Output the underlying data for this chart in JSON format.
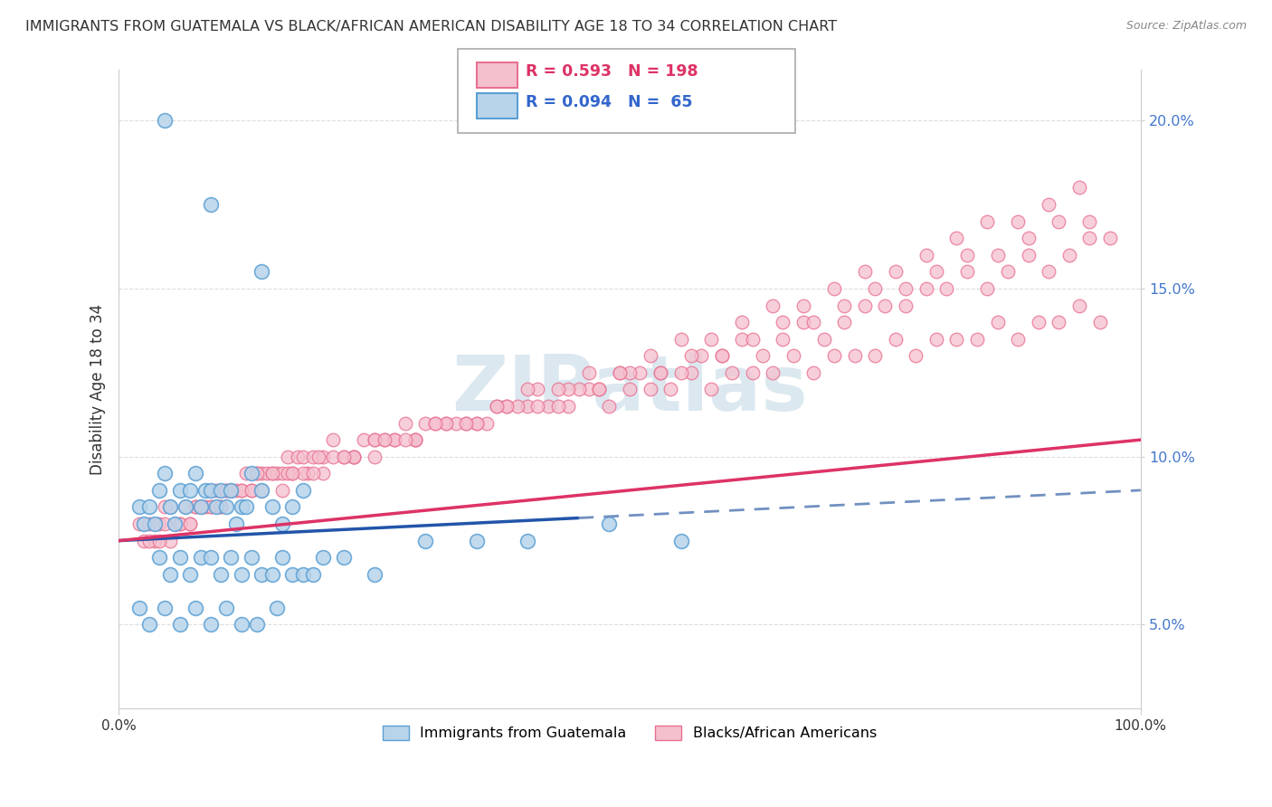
{
  "title": "IMMIGRANTS FROM GUATEMALA VS BLACK/AFRICAN AMERICAN DISABILITY AGE 18 TO 34 CORRELATION CHART",
  "source": "Source: ZipAtlas.com",
  "ylabel": "Disability Age 18 to 34",
  "xlim": [
    0,
    100
  ],
  "ylim": [
    2.5,
    21.5
  ],
  "yticks": [
    5.0,
    10.0,
    15.0,
    20.0
  ],
  "xtick_labels": [
    "0.0%",
    "100.0%"
  ],
  "ytick_labels": [
    "5.0%",
    "10.0%",
    "15.0%",
    "20.0%"
  ],
  "blue_color": "#b8d4ea",
  "blue_edge": "#5a9fd4",
  "pink_color": "#f5c0ce",
  "pink_edge": "#e87090",
  "blue_line_color": "#2255aa",
  "blue_line_dashed_color": "#7090c0",
  "pink_line_color": "#dd3366",
  "watermark_text": "ZIPatlas",
  "watermark_color": "#dce8f0",
  "ytick_color": "#4477cc",
  "xtick_color": "#333333",
  "ylabel_color": "#333333",
  "grid_color": "#dddddd",
  "spine_color": "#cccccc",
  "title_color": "#333333",
  "source_color": "#888888",
  "legend_box_color": "#aaaaaa",
  "legend_text_blue": "#3366cc",
  "legend_text_pink": "#dd3366",
  "blue_scatter_x": [
    4.5,
    9.0,
    14.0,
    2.0,
    2.5,
    3.0,
    3.5,
    4.0,
    4.5,
    5.0,
    5.5,
    6.0,
    6.5,
    7.0,
    7.5,
    8.0,
    8.5,
    9.0,
    9.5,
    10.0,
    10.5,
    11.0,
    11.5,
    12.0,
    12.5,
    13.0,
    14.0,
    15.0,
    16.0,
    17.0,
    18.0,
    4.0,
    5.0,
    6.0,
    7.0,
    8.0,
    9.0,
    10.0,
    11.0,
    12.0,
    13.0,
    14.0,
    15.0,
    16.0,
    17.0,
    18.0,
    19.0,
    20.0,
    22.0,
    25.0,
    30.0,
    35.0,
    40.0,
    48.0,
    55.0,
    2.0,
    3.0,
    4.5,
    6.0,
    7.5,
    9.0,
    10.5,
    12.0,
    13.5,
    15.5
  ],
  "blue_scatter_y": [
    20.0,
    17.5,
    15.5,
    8.5,
    8.0,
    8.5,
    8.0,
    9.0,
    9.5,
    8.5,
    8.0,
    9.0,
    8.5,
    9.0,
    9.5,
    8.5,
    9.0,
    9.0,
    8.5,
    9.0,
    8.5,
    9.0,
    8.0,
    8.5,
    8.5,
    9.5,
    9.0,
    8.5,
    8.0,
    8.5,
    9.0,
    7.0,
    6.5,
    7.0,
    6.5,
    7.0,
    7.0,
    6.5,
    7.0,
    6.5,
    7.0,
    6.5,
    6.5,
    7.0,
    6.5,
    6.5,
    6.5,
    7.0,
    7.0,
    6.5,
    7.5,
    7.5,
    7.5,
    8.0,
    7.5,
    5.5,
    5.0,
    5.5,
    5.0,
    5.5,
    5.0,
    5.5,
    5.0,
    5.0,
    5.5
  ],
  "pink_scatter_x": [
    2.0,
    2.5,
    3.0,
    3.5,
    4.0,
    4.5,
    5.0,
    5.5,
    6.0,
    6.5,
    7.0,
    7.5,
    8.0,
    8.5,
    9.0,
    9.5,
    10.0,
    10.5,
    11.0,
    11.5,
    12.0,
    12.5,
    13.0,
    13.5,
    14.0,
    14.5,
    15.0,
    15.5,
    16.0,
    16.5,
    17.0,
    17.5,
    18.0,
    18.5,
    19.0,
    20.0,
    21.0,
    22.0,
    23.0,
    24.0,
    25.0,
    26.0,
    27.0,
    28.0,
    29.0,
    30.0,
    32.0,
    34.0,
    36.0,
    38.0,
    40.0,
    42.0,
    44.0,
    46.0,
    48.0,
    50.0,
    52.0,
    54.0,
    56.0,
    58.0,
    60.0,
    62.0,
    64.0,
    66.0,
    68.0,
    70.0,
    72.0,
    74.0,
    76.0,
    78.0,
    80.0,
    82.0,
    84.0,
    86.0,
    88.0,
    90.0,
    92.0,
    94.0,
    96.0,
    3.0,
    4.5,
    6.0,
    7.5,
    9.0,
    10.5,
    12.0,
    13.5,
    15.0,
    16.5,
    18.0,
    19.5,
    21.0,
    23.0,
    25.0,
    27.0,
    29.0,
    31.0,
    33.0,
    35.0,
    37.0,
    39.0,
    41.0,
    43.0,
    45.0,
    47.0,
    49.0,
    51.0,
    53.0,
    55.0,
    57.0,
    59.0,
    61.0,
    63.0,
    65.0,
    67.0,
    69.0,
    71.0,
    73.0,
    75.0,
    77.0,
    79.0,
    81.0,
    83.0,
    85.0,
    87.0,
    89.0,
    91.0,
    93.0,
    95.0,
    97.0,
    5.0,
    8.0,
    11.0,
    14.0,
    17.0,
    20.0,
    23.0,
    26.0,
    29.0,
    32.0,
    35.0,
    38.0,
    41.0,
    44.0,
    47.0,
    50.0,
    53.0,
    56.0,
    59.0,
    62.0,
    65.0,
    68.0,
    71.0,
    74.0,
    77.0,
    80.0,
    83.0,
    86.0,
    89.0,
    92.0,
    95.0,
    4.0,
    7.0,
    10.0,
    13.0,
    16.0,
    19.0,
    22.0,
    25.0,
    28.0,
    31.0,
    34.0,
    37.0,
    40.0,
    43.0,
    46.0,
    49.0,
    52.0,
    55.0,
    58.0,
    61.0,
    64.0,
    67.0,
    70.0,
    73.0,
    76.0,
    79.0,
    82.0,
    85.0,
    88.0,
    91.0,
    94.0
  ],
  "pink_scatter_y": [
    8.0,
    7.5,
    8.0,
    7.5,
    8.0,
    8.5,
    7.5,
    8.0,
    8.0,
    8.5,
    8.0,
    8.5,
    8.5,
    8.5,
    8.5,
    9.0,
    8.5,
    9.0,
    9.0,
    9.0,
    9.0,
    9.5,
    9.0,
    9.5,
    9.5,
    9.5,
    9.5,
    9.5,
    9.5,
    10.0,
    9.5,
    10.0,
    10.0,
    9.5,
    10.0,
    10.0,
    10.5,
    10.0,
    10.0,
    10.5,
    10.5,
    10.5,
    10.5,
    11.0,
    10.5,
    11.0,
    11.0,
    11.0,
    11.0,
    11.5,
    11.5,
    11.5,
    11.5,
    12.0,
    11.5,
    12.0,
    12.0,
    12.0,
    12.5,
    12.0,
    12.5,
    12.5,
    12.5,
    13.0,
    12.5,
    13.0,
    13.0,
    13.0,
    13.5,
    13.0,
    13.5,
    13.5,
    13.5,
    14.0,
    13.5,
    14.0,
    14.0,
    14.5,
    14.0,
    7.5,
    8.0,
    8.0,
    8.5,
    8.5,
    9.0,
    9.0,
    9.5,
    9.5,
    9.5,
    9.5,
    10.0,
    10.0,
    10.0,
    10.5,
    10.5,
    10.5,
    11.0,
    11.0,
    11.0,
    11.5,
    11.5,
    12.0,
    11.5,
    12.0,
    12.0,
    12.5,
    12.5,
    12.5,
    12.5,
    13.0,
    13.0,
    13.5,
    13.0,
    13.5,
    14.0,
    13.5,
    14.0,
    14.5,
    14.5,
    14.5,
    15.0,
    15.0,
    15.5,
    15.0,
    15.5,
    16.0,
    15.5,
    16.0,
    16.5,
    16.5,
    8.5,
    8.5,
    9.0,
    9.0,
    9.5,
    9.5,
    10.0,
    10.5,
    10.5,
    11.0,
    11.0,
    11.5,
    11.5,
    12.0,
    12.0,
    12.5,
    12.5,
    13.0,
    13.0,
    13.5,
    14.0,
    14.0,
    14.5,
    15.0,
    15.0,
    15.5,
    16.0,
    16.0,
    16.5,
    17.0,
    17.0,
    7.5,
    8.0,
    8.5,
    9.0,
    9.0,
    9.5,
    10.0,
    10.0,
    10.5,
    11.0,
    11.0,
    11.5,
    12.0,
    12.0,
    12.5,
    12.5,
    13.0,
    13.5,
    13.5,
    14.0,
    14.5,
    14.5,
    15.0,
    15.5,
    15.5,
    16.0,
    16.5,
    17.0,
    17.0,
    17.5,
    18.0
  ],
  "blue_trend_x0": 0,
  "blue_trend_y0": 7.5,
  "blue_trend_x1": 100,
  "blue_trend_y1": 9.0,
  "blue_dashed_start": 45,
  "pink_trend_x0": 0,
  "pink_trend_y0": 7.5,
  "pink_trend_x1": 100,
  "pink_trend_y1": 10.5
}
